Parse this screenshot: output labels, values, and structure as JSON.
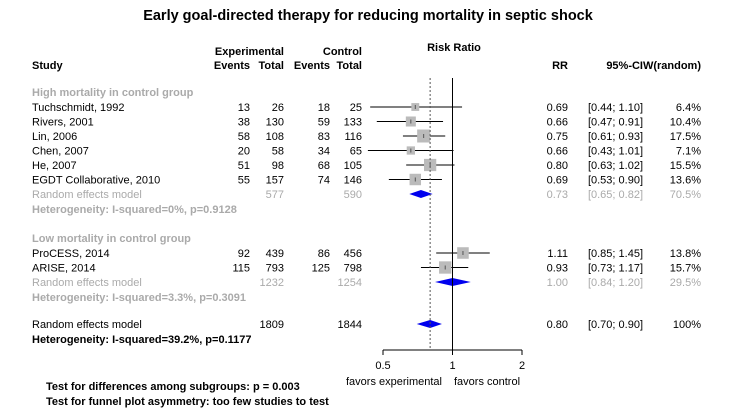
{
  "chart_data": {
    "type": "forest",
    "title": "Early goal-directed therapy for reducing mortality in septic shock",
    "columns": {
      "group_exp": "Experimental",
      "group_ctrl": "Control",
      "study": "Study",
      "exp_events": "Events",
      "exp_total": "Total",
      "ctrl_events": "Events",
      "ctrl_total": "Total",
      "effect": "Risk Ratio",
      "rr": "RR",
      "ci": "95%-CI",
      "weight": "W(random)"
    },
    "axis": {
      "scale": "log",
      "ticks": [
        0.5,
        1,
        2
      ],
      "tick_labels": [
        "0.5",
        "1",
        "2"
      ],
      "label_left": "favors experimental",
      "label_right": "favors control",
      "null_value": 1,
      "pooled_reference": 0.8
    },
    "colors": {
      "heading": "#aaaaaa",
      "summary_text": "#aaaaaa",
      "diamond": "#0000ee",
      "square": "#bbbbbb"
    },
    "subgroups": [
      {
        "label": "High mortality in control group",
        "studies": [
          {
            "name": "Tuchschmidt, 1992",
            "exp_events": "13",
            "exp_total": "26",
            "ctrl_events": "18",
            "ctrl_total": "25",
            "rr": 0.69,
            "lo": 0.44,
            "hi": 1.1,
            "rr_text": "0.69",
            "ci_text": "[0.44; 1.10]",
            "weight": 6.4,
            "weight_text": "6.4%"
          },
          {
            "name": "Rivers, 2001",
            "exp_events": "38",
            "exp_total": "130",
            "ctrl_events": "59",
            "ctrl_total": "133",
            "rr": 0.66,
            "lo": 0.47,
            "hi": 0.91,
            "rr_text": "0.66",
            "ci_text": "[0.47; 0.91]",
            "weight": 10.4,
            "weight_text": "10.4%"
          },
          {
            "name": "Lin, 2006",
            "exp_events": "58",
            "exp_total": "108",
            "ctrl_events": "83",
            "ctrl_total": "116",
            "rr": 0.75,
            "lo": 0.61,
            "hi": 0.93,
            "rr_text": "0.75",
            "ci_text": "[0.61; 0.93]",
            "weight": 17.5,
            "weight_text": "17.5%"
          },
          {
            "name": "Chen, 2007",
            "exp_events": "20",
            "exp_total": "58",
            "ctrl_events": "34",
            "ctrl_total": "65",
            "rr": 0.66,
            "lo": 0.43,
            "hi": 1.01,
            "rr_text": "0.66",
            "ci_text": "[0.43; 1.01]",
            "weight": 7.1,
            "weight_text": "7.1%"
          },
          {
            "name": "He, 2007",
            "exp_events": "51",
            "exp_total": "98",
            "ctrl_events": "68",
            "ctrl_total": "105",
            "rr": 0.8,
            "lo": 0.63,
            "hi": 1.02,
            "rr_text": "0.80",
            "ci_text": "[0.63; 1.02]",
            "weight": 15.5,
            "weight_text": "15.5%"
          },
          {
            "name": "EGDT Collaborative, 2010",
            "exp_events": "55",
            "exp_total": "157",
            "ctrl_events": "74",
            "ctrl_total": "146",
            "rr": 0.69,
            "lo": 0.53,
            "hi": 0.9,
            "rr_text": "0.69",
            "ci_text": "[0.53; 0.90]",
            "weight": 13.6,
            "weight_text": "13.6%"
          }
        ],
        "summary": {
          "label": "Random effects model",
          "exp_total": "577",
          "ctrl_total": "590",
          "rr": 0.73,
          "lo": 0.65,
          "hi": 0.82,
          "rr_text": "0.73",
          "ci_text": "[0.65; 0.82]",
          "weight_text": "70.5%"
        },
        "heterogeneity": "Heterogeneity: I-squared=0%, p=0.9128"
      },
      {
        "label": "Low mortality in control group",
        "studies": [
          {
            "name": "ProCESS, 2014",
            "exp_events": "92",
            "exp_total": "439",
            "ctrl_events": "86",
            "ctrl_total": "456",
            "rr": 1.11,
            "lo": 0.85,
            "hi": 1.45,
            "rr_text": "1.11",
            "ci_text": "[0.85; 1.45]",
            "weight": 13.8,
            "weight_text": "13.8%"
          },
          {
            "name": "ARISE, 2014",
            "exp_events": "115",
            "exp_total": "793",
            "ctrl_events": "125",
            "ctrl_total": "798",
            "rr": 0.93,
            "lo": 0.73,
            "hi": 1.17,
            "rr_text": "0.93",
            "ci_text": "[0.73; 1.17]",
            "weight": 15.7,
            "weight_text": "15.7%"
          }
        ],
        "summary": {
          "label": "Random effects model",
          "exp_total": "1232",
          "ctrl_total": "1254",
          "rr": 1.0,
          "lo": 0.84,
          "hi": 1.2,
          "rr_text": "1.00",
          "ci_text": "[0.84; 1.20]",
          "weight_text": "29.5%"
        },
        "heterogeneity": "Heterogeneity: I-squared=3.3%, p=0.3091"
      }
    ],
    "overall": {
      "label": "Random effects model",
      "exp_total": "1809",
      "ctrl_total": "1844",
      "rr": 0.8,
      "lo": 0.7,
      "hi": 0.9,
      "rr_text": "0.80",
      "ci_text": "[0.70; 0.90]",
      "weight_text": "100%"
    },
    "overall_heterogeneity": "Heterogeneity: I-squared=39.2%, p=0.1177",
    "footnotes": [
      "Test for differences among subgroups: p = 0.003",
      "Test for funnel plot asymmetry: too few studies to test"
    ]
  }
}
